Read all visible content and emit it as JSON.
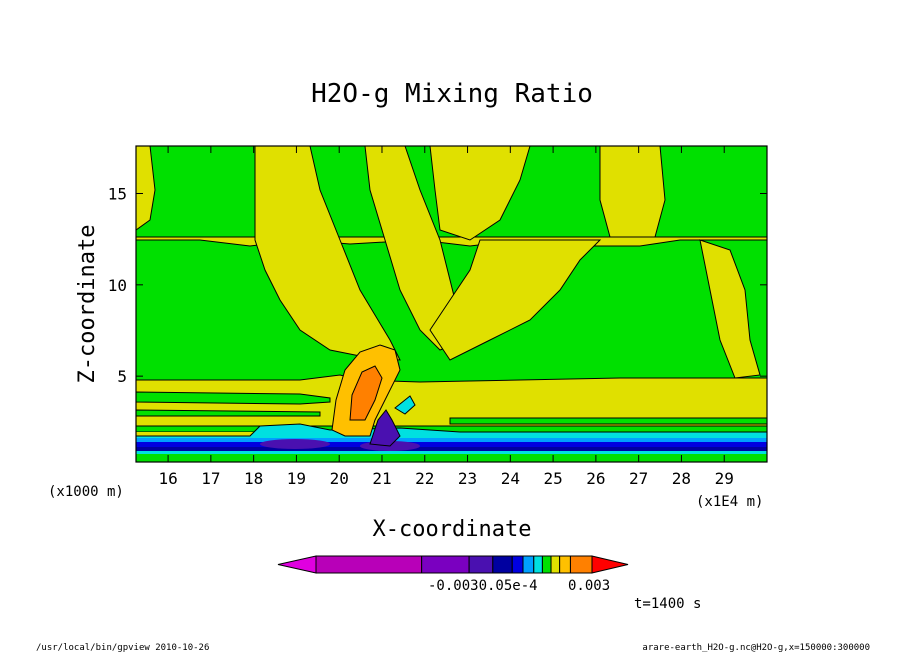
{
  "chart_data": {
    "type": "heatmap",
    "title": "H2O-g Mixing Ratio",
    "xlabel": "X-coordinate",
    "ylabel": "Z-coordinate",
    "x_unit_left": "(x1000 m)",
    "x_unit_right": "(x1E4 m)",
    "xlim": [
      15.25,
      30.0
    ],
    "ylim": [
      0.3,
      17.6
    ],
    "x_ticks": [
      16,
      17,
      18,
      19,
      20,
      21,
      22,
      23,
      24,
      25,
      26,
      27,
      28,
      29
    ],
    "y_ticks": [
      5,
      10,
      15
    ],
    "colorbar": {
      "colors": [
        "#e000e0",
        "#b800b8",
        "#7a00c0",
        "#4a10b0",
        "#0000a0",
        "#0000e0",
        "#00a0ff",
        "#00e0e0",
        "#00e000",
        "#e0e000",
        "#ffc000",
        "#ff8000",
        "#ff0000"
      ],
      "labels": [
        "-0.003",
        "0.0",
        "5e-4",
        "0.003"
      ],
      "raw_label": "-0.0030.05e-4",
      "raw_label_end": "0.003"
    },
    "time_label": "t=1400 s"
  },
  "footer": {
    "left": "/usr/local/bin/gpview  2010-10-26",
    "right": "arare-earth_H2O-g.nc@H2O-g,x=150000:300000"
  }
}
